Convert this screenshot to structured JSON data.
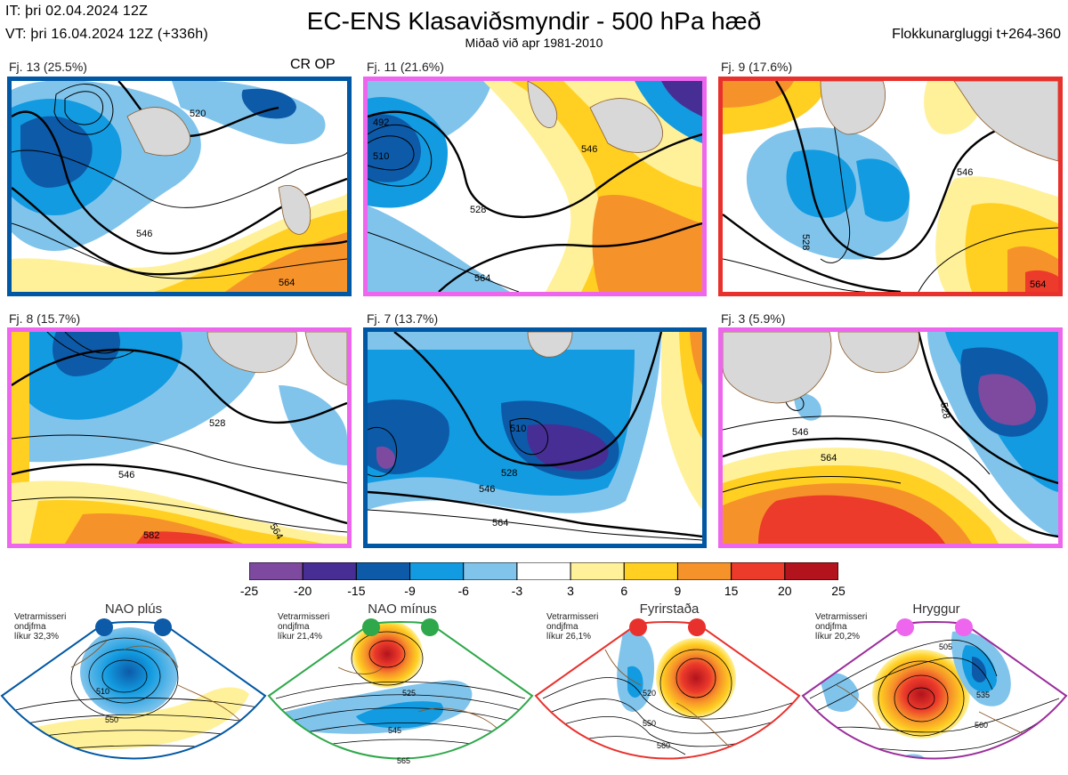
{
  "header": {
    "initial_time": "IT: þri 02.04.2024 12Z",
    "valid_time": "VT: þri 16.04.2024 12Z  (+336h)",
    "title": "EC-ENS Klasaviðsmyndir - 500 hPa hæð",
    "subtitle": "Miðað við apr 1981-2010",
    "window": "Flokkunargluggi t+264-360"
  },
  "panels": [
    {
      "label": "Fj. 13 (25.5%)",
      "tag": "CR OP",
      "border_color": "#0057a3",
      "contours": [
        "520",
        "546",
        "564"
      ]
    },
    {
      "label": "Fj. 11 (21.6%)",
      "tag": "",
      "border_color": "#ee66ee",
      "contours": [
        "492",
        "510",
        "528",
        "546",
        "564"
      ]
    },
    {
      "label": "Fj. 9 (17.6%)",
      "tag": "",
      "border_color": "#e8312c",
      "contours": [
        "528",
        "546",
        "564"
      ]
    },
    {
      "label": "Fj. 8 (15.7%)",
      "tag": "",
      "border_color": "#ee66ee",
      "contours": [
        "528",
        "546",
        "564",
        "582"
      ]
    },
    {
      "label": "Fj. 7 (13.7%)",
      "tag": "",
      "border_color": "#0057a3",
      "contours": [
        "510",
        "528",
        "546",
        "564"
      ]
    },
    {
      "label": "Fj. 3 (5.9%)",
      "tag": "",
      "border_color": "#ee66ee",
      "contours": [
        "528",
        "546",
        "564"
      ]
    }
  ],
  "colorbar": {
    "ticks": [
      "-25",
      "-20",
      "-15",
      "-9",
      "-6",
      "-3",
      "3",
      "6",
      "9",
      "15",
      "20",
      "25"
    ],
    "colors": [
      "#7d4aa0",
      "#472e95",
      "#0d5aa8",
      "#129be0",
      "#80c4ec",
      "#ffffff",
      "#fff19a",
      "#ffcf22",
      "#f6922a",
      "#ec3a2b",
      "#b2131d"
    ]
  },
  "regimes": [
    {
      "name": "NAO plús",
      "note": [
        "Vetrarmisseri",
        "ondjfma",
        "líkur 32,3%"
      ],
      "color": "#0057a3",
      "contours": [
        "510",
        "550"
      ]
    },
    {
      "name": "NAO mínus",
      "note": [
        "Vetrarmisseri",
        "ondjfma",
        "líkur 21,4%"
      ],
      "color": "#2ea84a",
      "contours": [
        "525",
        "545",
        "565"
      ]
    },
    {
      "name": "Fyrirstaða",
      "note": [
        "Vetrarmisseri",
        "ondjfma",
        "líkur 26,1%"
      ],
      "color": "#e8312c",
      "contours": [
        "520",
        "550",
        "560"
      ]
    },
    {
      "name": "Hryggur",
      "note": [
        "Vetrarmisseri",
        "ondjfma",
        "líkur 20,2%"
      ],
      "color": "#9b2d9b",
      "dot_color": "#ee66ee",
      "contours": [
        "505",
        "535",
        "560"
      ]
    }
  ]
}
